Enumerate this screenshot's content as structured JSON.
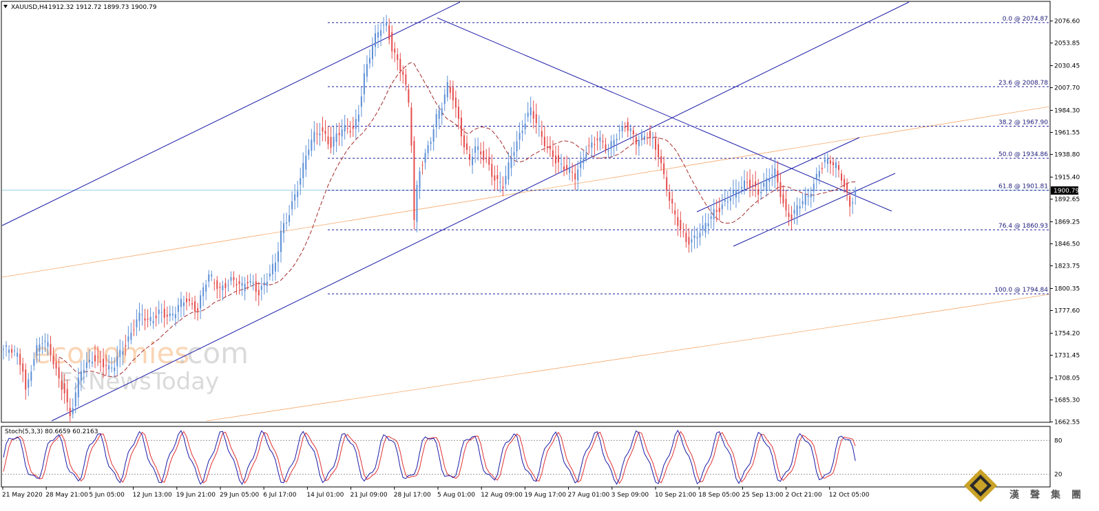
{
  "header": {
    "symbol": "XAUUSD,H4",
    "ohlc": "1912.32 1912.72 1899.73 1900.79"
  },
  "current_price_label": "1900.79",
  "stoch_label": "Stoch(5,3,3) 80.6659 60.2163",
  "stoch_levels": [
    "80",
    "20"
  ],
  "watermark": {
    "line1a": "economies",
    "line1b": ".com",
    "line2a": "Fx",
    "line2b": "NewsToday"
  },
  "logo_text": [
    "漢",
    "聲",
    "集",
    "團"
  ],
  "colors": {
    "bull": "#5b8fd6",
    "bear": "#e54a4a",
    "trend": "#1a1aa8",
    "ma": "#a52a2a",
    "fib": "#1a1a9a",
    "orange": "#f6a86a",
    "stoch_main": "#1a1aa8",
    "stoch_signal": "#e03030"
  },
  "chart_data": {
    "type": "candlestick",
    "y_axis_ticks": [
      "2076.60",
      "2053.85",
      "2030.45",
      "2007.70",
      "1984.30",
      "1961.55",
      "1938.80",
      "1915.40",
      "1892.65",
      "1869.25",
      "1846.50",
      "1823.75",
      "1800.35",
      "1777.60",
      "1754.20",
      "1731.45",
      "1708.05",
      "1685.30",
      "1662.55"
    ],
    "ylim": [
      1662.55,
      2076.6
    ],
    "x_axis_labels": [
      "21 May 2020",
      "28 May 21:00",
      "5 Jun 05:00",
      "12 Jun 13:00",
      "19 Jun 21:00",
      "29 Jun 05:00",
      "6 Jul 17:00",
      "14 Jul 01:00",
      "21 Jul 09:00",
      "28 Jul 17:00",
      "5 Aug 01:00",
      "12 Aug 09:00",
      "19 Aug 17:00",
      "27 Aug 01:00",
      "3 Sep 09:00",
      "10 Sep 21:00",
      "18 Sep 05:00",
      "25 Sep 13:00",
      "2 Oct 21:00",
      "12 Oct 05:00"
    ],
    "fibonacci": [
      {
        "label": "0.0 @ 2074.87",
        "value": 2074.87
      },
      {
        "label": "23.6 @ 2008.78",
        "value": 2008.78
      },
      {
        "label": "38.2 @ 1967.90",
        "value": 1967.9
      },
      {
        "label": "50.0 @ 1934.86",
        "value": 1934.86
      },
      {
        "label": "61.8 @ 1901.81",
        "value": 1901.81
      },
      {
        "label": "76.4 @ 1860.93",
        "value": 1860.93
      },
      {
        "label": "100.0 @ 1794.84",
        "value": 1794.84
      }
    ],
    "price_path": [
      [
        0,
        1738
      ],
      [
        3,
        1735
      ],
      [
        5,
        1730
      ],
      [
        7,
        1718
      ],
      [
        8,
        1695
      ],
      [
        10,
        1720
      ],
      [
        12,
        1738
      ],
      [
        14,
        1745
      ],
      [
        16,
        1740
      ],
      [
        18,
        1725
      ],
      [
        20,
        1708
      ],
      [
        22,
        1695
      ],
      [
        23,
        1680
      ],
      [
        24,
        1668
      ],
      [
        26,
        1690
      ],
      [
        28,
        1715
      ],
      [
        30,
        1722
      ],
      [
        32,
        1730
      ],
      [
        34,
        1728
      ],
      [
        36,
        1722
      ],
      [
        38,
        1715
      ],
      [
        40,
        1720
      ],
      [
        42,
        1735
      ],
      [
        44,
        1745
      ],
      [
        46,
        1755
      ],
      [
        48,
        1768
      ],
      [
        50,
        1772
      ],
      [
        52,
        1765
      ],
      [
        54,
        1770
      ],
      [
        56,
        1778
      ],
      [
        58,
        1775
      ],
      [
        60,
        1770
      ],
      [
        62,
        1775
      ],
      [
        64,
        1785
      ],
      [
        66,
        1790
      ],
      [
        68,
        1784
      ],
      [
        70,
        1780
      ],
      [
        72,
        1800
      ],
      [
        74,
        1812
      ],
      [
        76,
        1806
      ],
      [
        78,
        1800
      ],
      [
        80,
        1806
      ],
      [
        82,
        1810
      ],
      [
        84,
        1806
      ],
      [
        86,
        1800
      ],
      [
        88,
        1808
      ],
      [
        90,
        1805
      ],
      [
        92,
        1798
      ],
      [
        94,
        1806
      ],
      [
        96,
        1815
      ],
      [
        98,
        1825
      ],
      [
        99,
        1840
      ],
      [
        100,
        1858
      ],
      [
        102,
        1872
      ],
      [
        104,
        1890
      ],
      [
        106,
        1905
      ],
      [
        108,
        1925
      ],
      [
        110,
        1945
      ],
      [
        112,
        1958
      ],
      [
        114,
        1965
      ],
      [
        116,
        1960
      ],
      [
        118,
        1948
      ],
      [
        120,
        1958
      ],
      [
        122,
        1962
      ],
      [
        124,
        1966
      ],
      [
        126,
        1965
      ],
      [
        128,
        1985
      ],
      [
        130,
        2020
      ],
      [
        132,
        2040
      ],
      [
        134,
        2058
      ],
      [
        136,
        2070
      ],
      [
        138,
        2074
      ],
      [
        140,
        2050
      ],
      [
        142,
        2035
      ],
      [
        144,
        2020
      ],
      [
        146,
        1990
      ],
      [
        147,
        1950
      ],
      [
        148,
        1870
      ],
      [
        149,
        1905
      ],
      [
        150,
        1925
      ],
      [
        152,
        1940
      ],
      [
        154,
        1955
      ],
      [
        156,
        1975
      ],
      [
        158,
        1988
      ],
      [
        160,
        2010
      ],
      [
        162,
        2000
      ],
      [
        164,
        1975
      ],
      [
        166,
        1948
      ],
      [
        168,
        1930
      ],
      [
        170,
        1945
      ],
      [
        172,
        1940
      ],
      [
        174,
        1935
      ],
      [
        176,
        1920
      ],
      [
        178,
        1910
      ],
      [
        180,
        1905
      ],
      [
        182,
        1925
      ],
      [
        184,
        1945
      ],
      [
        186,
        1960
      ],
      [
        188,
        1975
      ],
      [
        190,
        1985
      ],
      [
        192,
        1970
      ],
      [
        194,
        1955
      ],
      [
        196,
        1945
      ],
      [
        198,
        1940
      ],
      [
        200,
        1930
      ],
      [
        202,
        1925
      ],
      [
        204,
        1920
      ],
      [
        206,
        1915
      ],
      [
        208,
        1930
      ],
      [
        210,
        1945
      ],
      [
        212,
        1950
      ],
      [
        214,
        1955
      ],
      [
        216,
        1948
      ],
      [
        218,
        1942
      ],
      [
        220,
        1955
      ],
      [
        222,
        1965
      ],
      [
        224,
        1970
      ],
      [
        226,
        1962
      ],
      [
        228,
        1950
      ],
      [
        230,
        1955
      ],
      [
        232,
        1960
      ],
      [
        234,
        1955
      ],
      [
        236,
        1940
      ],
      [
        238,
        1915
      ],
      [
        240,
        1890
      ],
      [
        242,
        1875
      ],
      [
        244,
        1862
      ],
      [
        246,
        1852
      ],
      [
        248,
        1850
      ],
      [
        250,
        1855
      ],
      [
        252,
        1860
      ],
      [
        254,
        1870
      ],
      [
        256,
        1880
      ],
      [
        258,
        1885
      ],
      [
        260,
        1890
      ],
      [
        262,
        1895
      ],
      [
        264,
        1898
      ],
      [
        266,
        1905
      ],
      [
        268,
        1912
      ],
      [
        270,
        1908
      ],
      [
        272,
        1900
      ],
      [
        274,
        1905
      ],
      [
        276,
        1915
      ],
      [
        278,
        1920
      ],
      [
        280,
        1900
      ],
      [
        282,
        1880
      ],
      [
        284,
        1875
      ],
      [
        286,
        1882
      ],
      [
        288,
        1890
      ],
      [
        290,
        1895
      ],
      [
        292,
        1910
      ],
      [
        294,
        1925
      ],
      [
        296,
        1932
      ],
      [
        298,
        1930
      ],
      [
        300,
        1925
      ],
      [
        302,
        1915
      ],
      [
        304,
        1898
      ],
      [
        305,
        1888
      ],
      [
        306,
        1895
      ],
      [
        307,
        1900
      ]
    ]
  }
}
